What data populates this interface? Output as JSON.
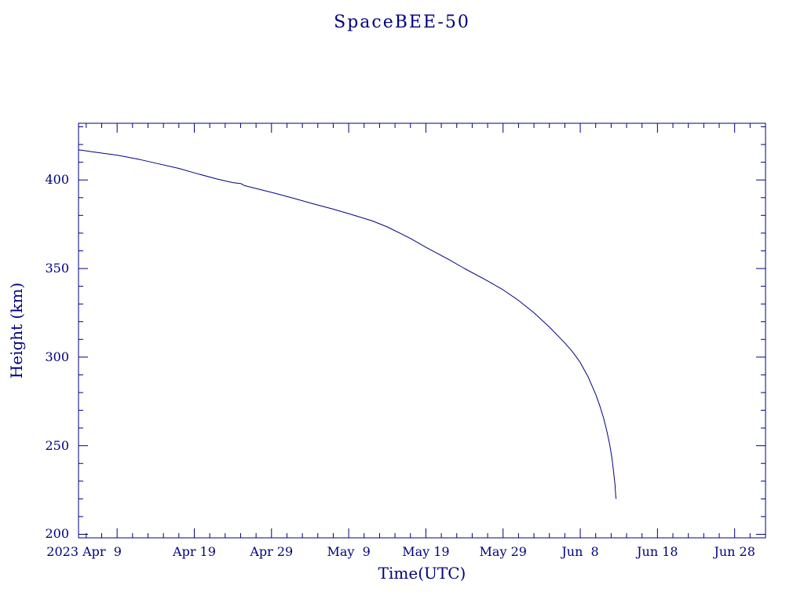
{
  "page": {
    "background": "#ffffff",
    "accent": "#000080"
  },
  "chart_data": {
    "type": "line",
    "title": "SpaceBEE-50",
    "xlabel": "Time(UTC)",
    "ylabel": "Height (km)",
    "line_color": "#000080",
    "grid": false,
    "legend": "none",
    "x_domain_days": [
      0,
      89
    ],
    "x_epoch": "day 0 = 2023 Apr 4",
    "x_ticks": [
      {
        "day": 5,
        "label": "2023 Apr  9"
      },
      {
        "day": 15,
        "label": "Apr 19"
      },
      {
        "day": 25,
        "label": "Apr 29"
      },
      {
        "day": 35,
        "label": "May  9"
      },
      {
        "day": 45,
        "label": "May 19"
      },
      {
        "day": 55,
        "label": "May 29"
      },
      {
        "day": 65,
        "label": "Jun  8"
      },
      {
        "day": 75,
        "label": "Jun 18"
      },
      {
        "day": 85,
        "label": "Jun 28"
      }
    ],
    "x_minor_tick_days": 2,
    "ylim": [
      198,
      432
    ],
    "y_ticks": [
      200,
      250,
      300,
      350,
      400
    ],
    "y_minor_tick_km": 10,
    "series": [
      {
        "name": "SpaceBEE-50 orbital height",
        "points_day_km": [
          [
            0,
            417
          ],
          [
            2,
            415.8
          ],
          [
            5,
            414
          ],
          [
            8,
            411.5
          ],
          [
            10,
            409.5
          ],
          [
            13,
            406.5
          ],
          [
            15,
            404
          ],
          [
            18,
            400.5
          ],
          [
            20,
            398.5
          ],
          [
            21,
            398
          ],
          [
            21.5,
            396.8
          ],
          [
            25,
            393
          ],
          [
            28,
            389.5
          ],
          [
            30,
            387
          ],
          [
            33,
            383.5
          ],
          [
            35,
            381
          ],
          [
            38,
            377
          ],
          [
            40,
            373.5
          ],
          [
            43,
            367
          ],
          [
            45,
            362
          ],
          [
            48,
            355
          ],
          [
            50,
            350
          ],
          [
            53,
            343
          ],
          [
            55,
            338
          ],
          [
            57,
            332
          ],
          [
            59,
            325
          ],
          [
            61,
            317
          ],
          [
            63,
            308
          ],
          [
            64,
            303
          ],
          [
            65,
            297
          ],
          [
            66,
            289
          ],
          [
            67,
            279
          ],
          [
            67.5,
            273
          ],
          [
            68,
            266
          ],
          [
            68.4,
            259
          ],
          [
            68.8,
            251
          ],
          [
            69.1,
            243
          ],
          [
            69.3,
            236
          ],
          [
            69.5,
            228
          ],
          [
            69.6,
            221
          ],
          [
            69.65,
            220
          ]
        ]
      }
    ]
  }
}
